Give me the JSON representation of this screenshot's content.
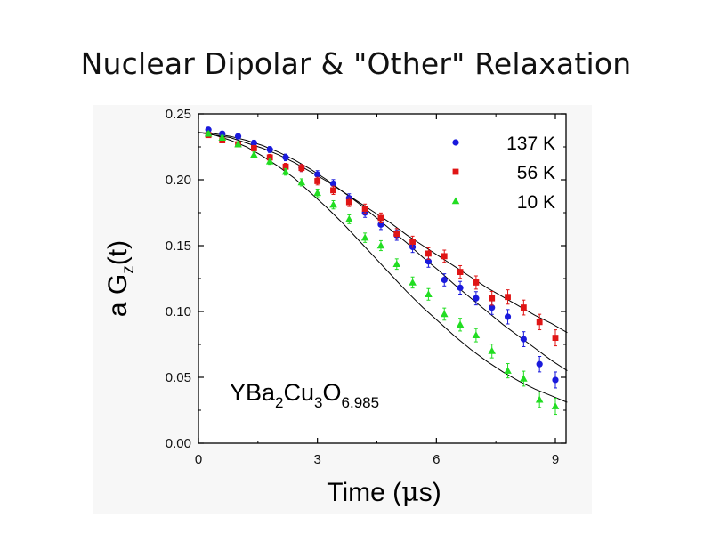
{
  "chart_data": {
    "type": "scatter",
    "title": "Nuclear Dipolar & \"Other\" Relaxation",
    "xlabel": "Time (",
    "xlabel_mu": "μ",
    "xlabel_unit": "s)",
    "ylabel": "a G",
    "ylabel_sub": "z",
    "ylabel_suffix": "(t)",
    "xlim": [
      0,
      9.3
    ],
    "ylim": [
      0,
      0.25
    ],
    "xticks": [
      "0",
      "3",
      "6",
      "9"
    ],
    "xtick_values": [
      0,
      3,
      6,
      9
    ],
    "yticks": [
      "0.00",
      "0.05",
      "0.10",
      "0.15",
      "0.20",
      "0.25"
    ],
    "ytick_values": [
      0.0,
      0.05,
      0.1,
      0.15,
      0.2,
      0.25
    ],
    "grid": false,
    "legend_position": "top-right",
    "annotation": {
      "parts": [
        "YBa",
        "2",
        "Cu",
        "3",
        "O",
        "6.985"
      ]
    },
    "series": [
      {
        "name": "137 K",
        "color": "#1a1adc",
        "marker": "circle",
        "x": [
          0.25,
          0.6,
          1.0,
          1.4,
          1.8,
          2.2,
          2.6,
          3.0,
          3.4,
          3.8,
          4.2,
          4.6,
          5.0,
          5.4,
          5.8,
          6.2,
          6.6,
          7.0,
          7.4,
          7.8,
          8.2,
          8.6,
          9.0
        ],
        "y": [
          0.238,
          0.235,
          0.233,
          0.228,
          0.223,
          0.217,
          0.209,
          0.204,
          0.197,
          0.186,
          0.175,
          0.166,
          0.158,
          0.149,
          0.138,
          0.124,
          0.118,
          0.11,
          0.103,
          0.096,
          0.079,
          0.06,
          0.048
        ],
        "fit": [
          0.236,
          0.235,
          0.233,
          0.23,
          0.226,
          0.221,
          0.215,
          0.208,
          0.2,
          0.191,
          0.182,
          0.172,
          0.162,
          0.152,
          0.141,
          0.131,
          0.12,
          0.11,
          0.1,
          0.09,
          0.081,
          0.072,
          0.063,
          0.055
        ]
      },
      {
        "name": "56 K",
        "color": "#e01515",
        "marker": "square",
        "x": [
          0.25,
          0.6,
          1.0,
          1.4,
          1.8,
          2.2,
          2.6,
          3.0,
          3.4,
          3.8,
          4.2,
          4.6,
          5.0,
          5.4,
          5.8,
          6.2,
          6.6,
          7.0,
          7.4,
          7.8,
          8.2,
          8.6,
          9.0
        ],
        "y": [
          0.234,
          0.23,
          0.227,
          0.224,
          0.217,
          0.21,
          0.209,
          0.199,
          0.192,
          0.183,
          0.178,
          0.171,
          0.159,
          0.153,
          0.144,
          0.142,
          0.13,
          0.122,
          0.11,
          0.111,
          0.103,
          0.092,
          0.08
        ],
        "fit": [
          0.236,
          0.234,
          0.232,
          0.228,
          0.224,
          0.219,
          0.213,
          0.206,
          0.199,
          0.191,
          0.183,
          0.175,
          0.167,
          0.158,
          0.15,
          0.142,
          0.134,
          0.126,
          0.118,
          0.111,
          0.104,
          0.097,
          0.091,
          0.084
        ]
      },
      {
        "name": "10 K",
        "color": "#22dd22",
        "marker": "triangle",
        "x": [
          0.25,
          0.6,
          1.0,
          1.4,
          1.8,
          2.2,
          2.6,
          3.0,
          3.4,
          3.8,
          4.2,
          4.6,
          5.0,
          5.4,
          5.8,
          6.2,
          6.6,
          7.0,
          7.4,
          7.8,
          8.2,
          8.6,
          9.0
        ],
        "y": [
          0.235,
          0.232,
          0.227,
          0.219,
          0.214,
          0.206,
          0.198,
          0.19,
          0.181,
          0.17,
          0.156,
          0.15,
          0.136,
          0.122,
          0.113,
          0.098,
          0.09,
          0.082,
          0.07,
          0.055,
          0.049,
          0.033,
          0.028
        ],
        "fit": [
          0.236,
          0.234,
          0.23,
          0.225,
          0.218,
          0.21,
          0.201,
          0.19,
          0.179,
          0.167,
          0.154,
          0.141,
          0.128,
          0.115,
          0.103,
          0.092,
          0.081,
          0.071,
          0.062,
          0.054,
          0.047,
          0.041,
          0.036,
          0.031
        ]
      }
    ]
  }
}
